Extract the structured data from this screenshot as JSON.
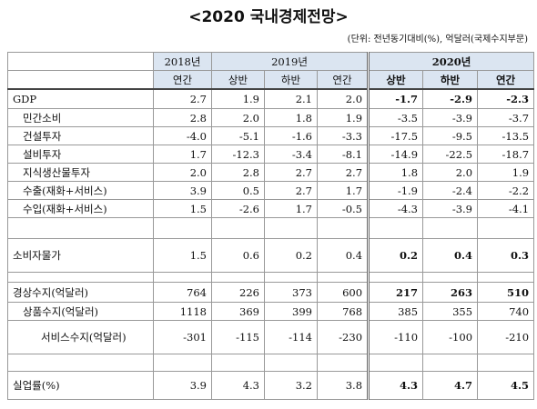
{
  "title": "<2020 국내경제전망>",
  "unit": "(단위: 전년동기대비(%), 억달러(국제수지부문)",
  "table": {
    "year_header": [
      "2018년",
      "2019년",
      "2020년"
    ],
    "period_header": [
      "연간",
      "상반",
      "하반",
      "연간",
      "상반",
      "하반",
      "연간"
    ],
    "rows": [
      [
        "GDP",
        "2.7",
        "1.9",
        "2.1",
        "2.0",
        "-1.7",
        "-2.9",
        "-2.3"
      ],
      [
        "민간소비",
        "2.8",
        "2.0",
        "1.8",
        "1.9",
        "-3.5",
        "-3.9",
        "-3.7"
      ],
      [
        "건설투자",
        "-4.0",
        "-5.1",
        "-1.6",
        "-3.3",
        "-17.5",
        "-9.5",
        "-13.5"
      ],
      [
        "설비투자",
        "1.7",
        "-12.3",
        "-3.4",
        "-8.1",
        "-14.9",
        "-22.5",
        "-18.7"
      ],
      [
        "지식생산물투자",
        "2.0",
        "2.8",
        "2.7",
        "2.7",
        "1.8",
        "2.0",
        "1.9"
      ],
      [
        "수출(재화+서비스)",
        "3.9",
        "0.5",
        "2.7",
        "1.7",
        "-1.9",
        "-2.4",
        "-2.2"
      ],
      [
        "수입(재화+서비스)",
        "1.5",
        "-2.6",
        "1.7",
        "-0.5",
        "-4.3",
        "-3.9",
        "-4.1"
      ],
      [
        "소비자물가",
        "1.5",
        "0.6",
        "0.2",
        "0.4",
        "0.2",
        "0.4",
        "0.3"
      ],
      [
        "경상수지(억달러)",
        "764",
        "226",
        "373",
        "600",
        "217",
        "263",
        "510"
      ],
      [
        "상품수지(억달러)",
        "1118",
        "369",
        "399",
        "768",
        "385",
        "355",
        "740"
      ],
      [
        "서비스수지(억달러)",
        "-301",
        "-115",
        "-114",
        "-230",
        "-110",
        "-100",
        "-210"
      ],
      [
        "실업률(%)",
        "3.9",
        "4.3",
        "3.2",
        "3.8",
        "4.3",
        "4.7",
        "4.5"
      ]
    ]
  }
}
